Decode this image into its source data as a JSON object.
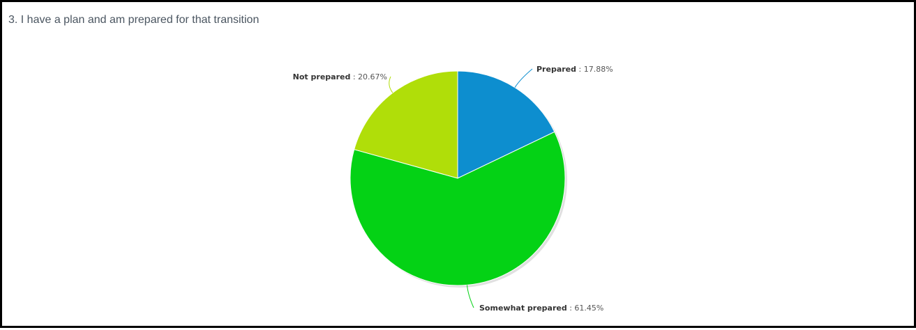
{
  "title": "3. I have a plan and am prepared for that transition",
  "chart_data": {
    "type": "pie",
    "title": "3. I have a plan and am prepared for that transition",
    "slices": [
      {
        "name": "Prepared",
        "value": 17.88,
        "color": "#0d8ecf"
      },
      {
        "name": "Somewhat prepared",
        "value": 61.45,
        "color": "#04d215"
      },
      {
        "name": "Not prepared",
        "value": 20.67,
        "color": "#b0de09"
      }
    ],
    "unit": "%",
    "legend": "none",
    "labels": "outside-callouts"
  }
}
